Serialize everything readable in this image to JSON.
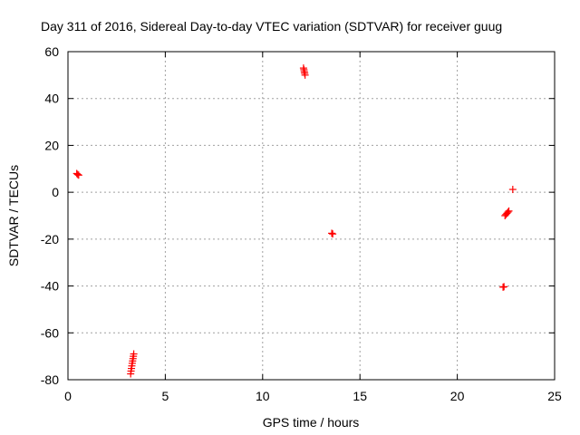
{
  "chart_data": {
    "type": "scatter",
    "title": "Day 311 of 2016, Sidereal Day-to-day VTEC variation (SDTVAR) for receiver guug",
    "xlabel": "GPS time / hours",
    "ylabel": "SDTVAR / TECUs",
    "xlim": [
      0,
      25
    ],
    "ylim": [
      -80,
      60
    ],
    "xticks": [
      0,
      5,
      10,
      15,
      20,
      25
    ],
    "yticks": [
      -80,
      -60,
      -40,
      -20,
      0,
      20,
      40,
      60
    ],
    "grid": true,
    "marker": "+",
    "color": "#ff0000",
    "series": [
      {
        "name": "SDTVAR",
        "points": [
          {
            "x": 0.45,
            "y": 8.0
          },
          {
            "x": 0.5,
            "y": 7.6
          },
          {
            "x": 0.55,
            "y": 7.3
          },
          {
            "x": 3.22,
            "y": -77.5
          },
          {
            "x": 3.24,
            "y": -76.3
          },
          {
            "x": 3.26,
            "y": -75.2
          },
          {
            "x": 3.28,
            "y": -74.1
          },
          {
            "x": 3.3,
            "y": -73.0
          },
          {
            "x": 3.32,
            "y": -72.0
          },
          {
            "x": 3.34,
            "y": -71.0
          },
          {
            "x": 3.36,
            "y": -70.0
          },
          {
            "x": 3.38,
            "y": -69.0
          },
          {
            "x": 12.1,
            "y": 53.0
          },
          {
            "x": 12.12,
            "y": 52.3
          },
          {
            "x": 12.14,
            "y": 51.5
          },
          {
            "x": 12.16,
            "y": 50.8
          },
          {
            "x": 12.18,
            "y": 50.0
          },
          {
            "x": 13.55,
            "y": -17.5
          },
          {
            "x": 13.6,
            "y": -17.8
          },
          {
            "x": 22.35,
            "y": -40.5
          },
          {
            "x": 22.4,
            "y": -40.3
          },
          {
            "x": 22.45,
            "y": -10.0
          },
          {
            "x": 22.5,
            "y": -9.5
          },
          {
            "x": 22.55,
            "y": -9.0
          },
          {
            "x": 22.6,
            "y": -8.5
          },
          {
            "x": 22.65,
            "y": -8.0
          },
          {
            "x": 22.85,
            "y": 1.2
          }
        ]
      }
    ]
  }
}
